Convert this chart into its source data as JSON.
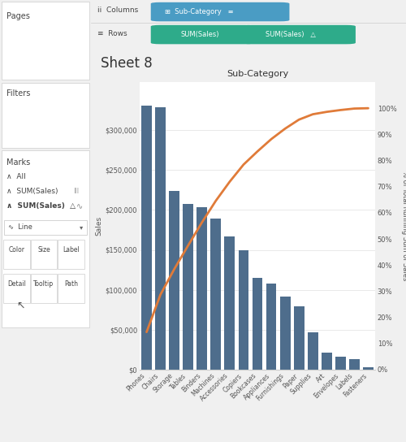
{
  "categories": [
    "Phones",
    "Chairs",
    "Storage",
    "Tables",
    "Binders",
    "Machines",
    "Accessories",
    "Copiers",
    "Bookcases",
    "Appliances",
    "Furnishings",
    "Paper",
    "Supplies",
    "Art",
    "Envelopes",
    "Labels",
    "Fasteners"
  ],
  "sales": [
    330000,
    328000,
    224000,
    207000,
    203000,
    189000,
    167000,
    150000,
    115000,
    108000,
    92000,
    79000,
    47000,
    21000,
    16000,
    13000,
    3000
  ],
  "bar_color": "#4e6d8c",
  "line_color": "#e07b39",
  "bg_color": "#f0f0f0",
  "chart_bg": "#ffffff",
  "panel_bg": "#ebebeb",
  "title": "Sub-Category",
  "sheet_title": "Sheet 8",
  "ylabel_left": "Sales",
  "ylabel_right": "% of Total Running Sum of Sales",
  "ylim_left": [
    0,
    360000
  ],
  "ylim_right": [
    0,
    110
  ],
  "yticks_left": [
    0,
    50000,
    100000,
    150000,
    200000,
    250000,
    300000
  ],
  "ytick_labels_left": [
    "$0",
    "$50,000",
    "$100,000",
    "$150,000",
    "$200,000",
    "$250,000",
    "$300,000"
  ],
  "yticks_right": [
    0,
    10,
    20,
    30,
    40,
    50,
    60,
    70,
    80,
    90,
    100
  ],
  "ytick_labels_right": [
    "0%",
    "10%",
    "20%",
    "30%",
    "40%",
    "50%",
    "60%",
    "70%",
    "80%",
    "90%",
    "100%"
  ],
  "pill_teal": "#2eab8a",
  "pill_blue": "#4a9cc4",
  "header_row_bg": "#f5f5f5",
  "divider_color": "#cccccc",
  "text_dark": "#444444",
  "text_light": "#777777"
}
